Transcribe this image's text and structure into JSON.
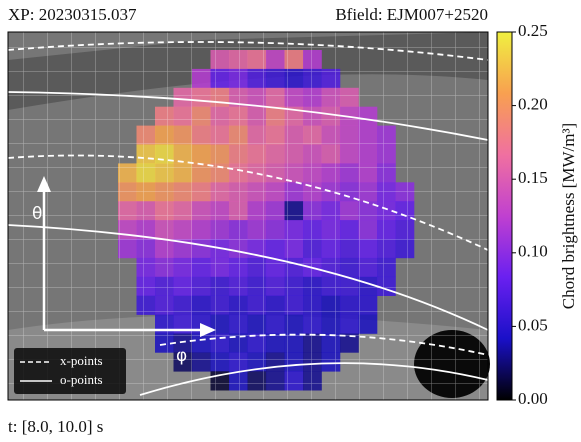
{
  "chart_data": {
    "type": "heatmap",
    "annotations": [
      "XP: 20230315.037",
      "Bfield: EJM007+2520",
      "t: [8.0, 10.0] s",
      "θ",
      "φ"
    ],
    "colorbar_label": "Chord brightness [MW/m³]",
    "legend": [
      "x-points",
      "o-points"
    ],
    "clim": [
      0,
      0.25
    ],
    "cticks": [
      {
        "value": 0,
        "label": "0.00"
      },
      {
        "value": 0.05,
        "label": "0.05"
      },
      {
        "value": 0.1,
        "label": "0.10"
      },
      {
        "value": 0.15,
        "label": "0.15"
      },
      {
        "value": 0.2,
        "label": "0.20"
      },
      {
        "value": 0.25,
        "label": "0.25"
      }
    ],
    "colormap": [
      "#000000",
      "#1a10c8",
      "#6a20f0",
      "#c040d0",
      "#f070a0",
      "#f8a050",
      "#f0f040"
    ],
    "values": [
      [
        null,
        null,
        null,
        null,
        null,
        0.15,
        0.16,
        0.17,
        0.13,
        0.18,
        0.12,
        null,
        null,
        null,
        null,
        null
      ],
      [
        null,
        null,
        null,
        null,
        0.12,
        0.08,
        0.09,
        0.07,
        0.06,
        0.05,
        0.06,
        0.07,
        null,
        null,
        null,
        null
      ],
      [
        null,
        null,
        null,
        0.16,
        0.17,
        0.18,
        0.15,
        0.14,
        0.16,
        0.13,
        0.12,
        0.14,
        0.15,
        null,
        null,
        null
      ],
      [
        null,
        null,
        0.18,
        0.17,
        0.19,
        0.16,
        0.17,
        0.15,
        0.18,
        0.16,
        0.14,
        0.15,
        0.13,
        0.12,
        null,
        null
      ],
      [
        null,
        0.19,
        0.21,
        0.2,
        0.18,
        0.17,
        0.19,
        0.16,
        0.17,
        0.15,
        0.16,
        0.14,
        0.13,
        0.12,
        0.11,
        null
      ],
      [
        null,
        0.23,
        0.24,
        0.22,
        0.21,
        0.2,
        0.18,
        0.17,
        0.16,
        0.15,
        0.14,
        0.15,
        0.13,
        0.12,
        0.11,
        null
      ],
      [
        0.22,
        0.24,
        0.23,
        0.22,
        0.2,
        0.19,
        0.17,
        0.16,
        0.15,
        0.14,
        0.13,
        0.12,
        0.11,
        0.12,
        0.1,
        null
      ],
      [
        0.2,
        0.21,
        0.2,
        0.19,
        0.18,
        0.16,
        0.15,
        0.14,
        0.13,
        0.11,
        0.12,
        0.11,
        0.1,
        0.11,
        0.09,
        0.1
      ],
      [
        0.16,
        0.15,
        0.17,
        0.16,
        0.14,
        0.13,
        0.15,
        0.12,
        0.11,
        0.03,
        0.1,
        0.09,
        0.11,
        0.1,
        0.09,
        0.08
      ],
      [
        0.13,
        0.12,
        0.14,
        0.13,
        0.12,
        0.11,
        0.1,
        0.11,
        0.1,
        0.09,
        0.08,
        0.09,
        0.08,
        0.1,
        0.08,
        0.07
      ],
      [
        0.11,
        0.1,
        0.12,
        0.11,
        0.1,
        0.09,
        0.1,
        0.09,
        0.08,
        0.09,
        0.07,
        0.08,
        0.07,
        0.08,
        0.07,
        0.06
      ],
      [
        null,
        0.09,
        0.1,
        0.09,
        0.08,
        0.09,
        0.08,
        0.07,
        0.08,
        0.07,
        0.08,
        0.07,
        0.06,
        0.07,
        0.06,
        null
      ],
      [
        null,
        0.08,
        0.07,
        0.08,
        0.07,
        0.06,
        0.07,
        0.06,
        0.07,
        0.06,
        0.05,
        0.06,
        0.06,
        0.05,
        0.06,
        null
      ],
      [
        null,
        0.06,
        0.07,
        0.06,
        0.05,
        0.06,
        0.05,
        0.06,
        0.05,
        0.06,
        0.05,
        0.04,
        0.05,
        0.05,
        null,
        null
      ],
      [
        null,
        null,
        0.05,
        0.06,
        0.05,
        0.04,
        0.05,
        0.04,
        0.05,
        0.04,
        0.05,
        0.04,
        0.05,
        0.04,
        null,
        null
      ],
      [
        null,
        null,
        0.04,
        0.03,
        0.04,
        0.05,
        0.04,
        0.05,
        0.04,
        0.04,
        0.03,
        0.04,
        0.03,
        null,
        null,
        null
      ],
      [
        null,
        null,
        null,
        0.02,
        0.03,
        0.04,
        0.05,
        0.04,
        0.03,
        0.04,
        0.03,
        0.04,
        null,
        null,
        null,
        null
      ],
      [
        null,
        null,
        null,
        null,
        null,
        0.01,
        0.04,
        0.02,
        0.03,
        0.05,
        0.03,
        null,
        null,
        null,
        null,
        null
      ]
    ]
  }
}
